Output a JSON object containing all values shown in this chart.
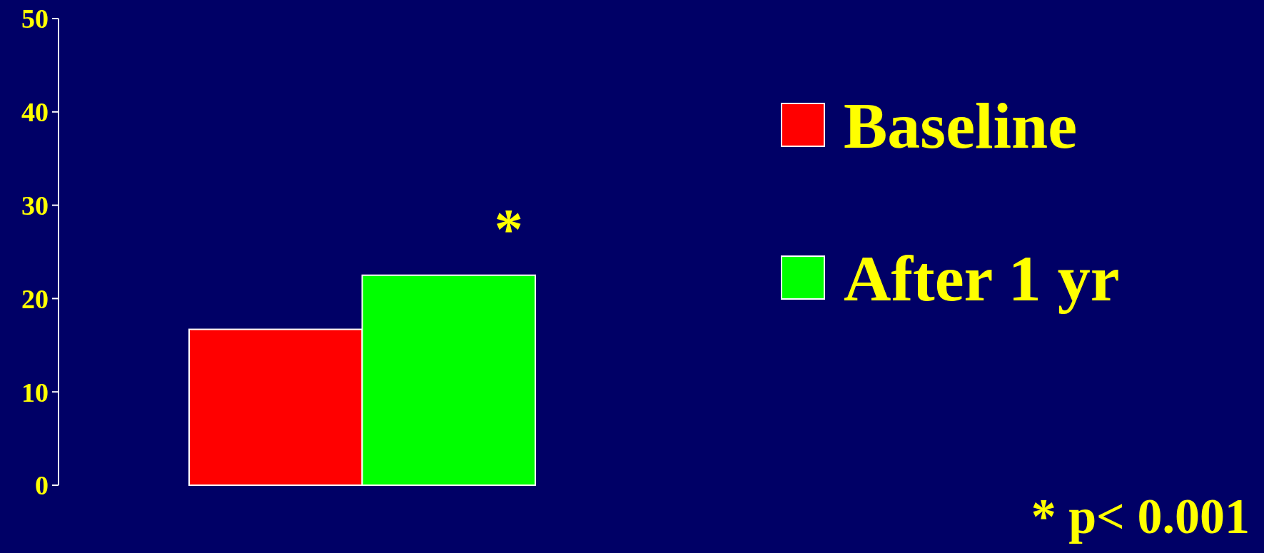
{
  "chart_data": {
    "type": "bar",
    "categories": [
      null
    ],
    "series": [
      {
        "name": "Baseline",
        "color": "#ff0000",
        "values": [
          16.7
        ]
      },
      {
        "name": "After 1 yr",
        "color": "#00ff00",
        "values": [
          22.5
        ]
      }
    ],
    "ylim": [
      0,
      50
    ],
    "yticks": [
      0,
      10,
      20,
      30,
      40,
      50
    ],
    "grid": false,
    "legend": "right",
    "tick_labels": "y",
    "annotations": [
      {
        "text": "*",
        "y": 22.5
      },
      "* p< 0.001"
    ]
  }
}
